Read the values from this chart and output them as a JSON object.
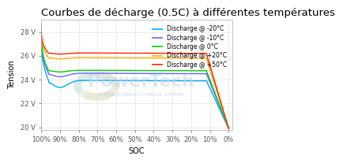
{
  "title": "Courbes de décharge (0.5C) à différentes températures",
  "xlabel": "SOC",
  "ylabel": "Tension",
  "xlim": [
    100,
    -2
  ],
  "ylim": [
    19.8,
    29.0
  ],
  "yticks": [
    20,
    22,
    24,
    26,
    28
  ],
  "ytick_labels": [
    "20 V",
    "22 V",
    "24 V",
    "26 V",
    "28 V"
  ],
  "xticks": [
    100,
    90,
    80,
    70,
    60,
    50,
    40,
    30,
    20,
    10,
    0
  ],
  "xtick_labels": [
    "100%",
    "90%",
    "80%",
    "70%",
    "60%",
    "50%",
    "40%",
    "30%",
    "20%",
    "10%",
    "0%"
  ],
  "series": [
    {
      "label": "Discharge @ -20°C",
      "color": "#00aaff",
      "plateau": 23.9,
      "dip": 23.3
    },
    {
      "label": "Discharge @ -10°C",
      "color": "#6666ff",
      "plateau": 24.5,
      "dip": 24.2
    },
    {
      "label": "Discharge @ 0°C",
      "color": "#00cc00",
      "plateau": 24.75,
      "dip": 24.6
    },
    {
      "label": "Discharge @ +20°C",
      "color": "#ffaa00",
      "plateau": 25.8,
      "dip": 25.7
    },
    {
      "label": "Discharge @ +50°C",
      "color": "#ff2200",
      "plateau": 26.2,
      "dip": 26.1
    }
  ],
  "background_color": "#ffffff",
  "watermark_text1": "PowerTech",
  "watermark_text2": "ADVANCED ENERGY STORAGE SYSTEMS",
  "grid_color": "#dddddd",
  "title_fontsize": 9.5,
  "axis_label_fontsize": 7,
  "tick_fontsize": 6,
  "legend_fontsize": 5.5
}
